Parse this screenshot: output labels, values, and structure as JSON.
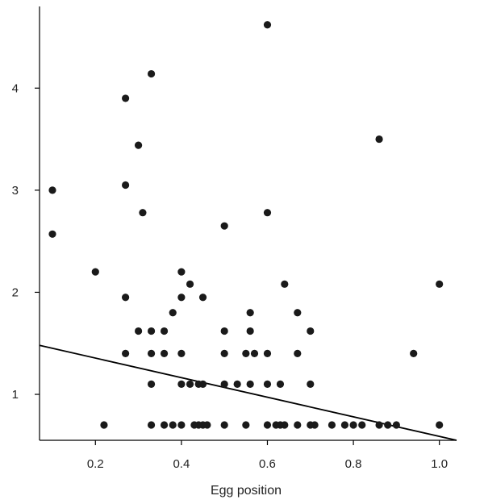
{
  "chart_data": {
    "type": "scatter",
    "title": "",
    "xlabel": "Egg position",
    "ylabel": "",
    "xlim": [
      0.07,
      1.04
    ],
    "ylim": [
      0.55,
      4.8
    ],
    "x_ticks": [
      0.2,
      0.4,
      0.6,
      0.8,
      1.0
    ],
    "x_tick_labels": [
      "0.2",
      "0.4",
      "0.6",
      "0.8",
      "1.0"
    ],
    "y_ticks": [
      1,
      2,
      3,
      4
    ],
    "y_tick_labels": [
      "1",
      "2",
      "3",
      "4"
    ],
    "grid": false,
    "legend": "none",
    "point_color": "#1a1a1a",
    "points": [
      {
        "x": 0.1,
        "y": 3.0
      },
      {
        "x": 0.1,
        "y": 2.57
      },
      {
        "x": 0.2,
        "y": 2.2
      },
      {
        "x": 0.22,
        "y": 0.7
      },
      {
        "x": 0.27,
        "y": 3.9
      },
      {
        "x": 0.27,
        "y": 3.05
      },
      {
        "x": 0.27,
        "y": 1.95
      },
      {
        "x": 0.27,
        "y": 1.4
      },
      {
        "x": 0.3,
        "y": 3.44
      },
      {
        "x": 0.3,
        "y": 1.62
      },
      {
        "x": 0.31,
        "y": 2.78
      },
      {
        "x": 0.33,
        "y": 4.14
      },
      {
        "x": 0.33,
        "y": 1.62
      },
      {
        "x": 0.33,
        "y": 1.4
      },
      {
        "x": 0.33,
        "y": 1.1
      },
      {
        "x": 0.33,
        "y": 0.7
      },
      {
        "x": 0.36,
        "y": 1.62
      },
      {
        "x": 0.36,
        "y": 1.4
      },
      {
        "x": 0.36,
        "y": 0.7
      },
      {
        "x": 0.38,
        "y": 1.8
      },
      {
        "x": 0.38,
        "y": 0.7
      },
      {
        "x": 0.4,
        "y": 2.2
      },
      {
        "x": 0.4,
        "y": 1.95
      },
      {
        "x": 0.4,
        "y": 1.4
      },
      {
        "x": 0.4,
        "y": 1.1
      },
      {
        "x": 0.4,
        "y": 0.7
      },
      {
        "x": 0.42,
        "y": 2.08
      },
      {
        "x": 0.42,
        "y": 1.1
      },
      {
        "x": 0.43,
        "y": 0.7
      },
      {
        "x": 0.44,
        "y": 1.1
      },
      {
        "x": 0.44,
        "y": 0.7
      },
      {
        "x": 0.45,
        "y": 1.95
      },
      {
        "x": 0.45,
        "y": 1.1
      },
      {
        "x": 0.45,
        "y": 0.7
      },
      {
        "x": 0.46,
        "y": 0.7
      },
      {
        "x": 0.5,
        "y": 2.65
      },
      {
        "x": 0.5,
        "y": 1.62
      },
      {
        "x": 0.5,
        "y": 1.4
      },
      {
        "x": 0.5,
        "y": 1.1
      },
      {
        "x": 0.5,
        "y": 0.7
      },
      {
        "x": 0.53,
        "y": 1.1
      },
      {
        "x": 0.55,
        "y": 1.4
      },
      {
        "x": 0.55,
        "y": 0.7
      },
      {
        "x": 0.56,
        "y": 1.8
      },
      {
        "x": 0.56,
        "y": 1.62
      },
      {
        "x": 0.56,
        "y": 1.1
      },
      {
        "x": 0.57,
        "y": 1.4
      },
      {
        "x": 0.6,
        "y": 4.62
      },
      {
        "x": 0.6,
        "y": 2.78
      },
      {
        "x": 0.6,
        "y": 1.4
      },
      {
        "x": 0.6,
        "y": 1.1
      },
      {
        "x": 0.6,
        "y": 0.7
      },
      {
        "x": 0.62,
        "y": 0.7
      },
      {
        "x": 0.63,
        "y": 1.1
      },
      {
        "x": 0.63,
        "y": 0.7
      },
      {
        "x": 0.64,
        "y": 2.08
      },
      {
        "x": 0.64,
        "y": 0.7
      },
      {
        "x": 0.67,
        "y": 1.8
      },
      {
        "x": 0.67,
        "y": 1.4
      },
      {
        "x": 0.67,
        "y": 0.7
      },
      {
        "x": 0.7,
        "y": 1.62
      },
      {
        "x": 0.7,
        "y": 1.1
      },
      {
        "x": 0.7,
        "y": 0.7
      },
      {
        "x": 0.71,
        "y": 0.7
      },
      {
        "x": 0.75,
        "y": 0.7
      },
      {
        "x": 0.78,
        "y": 0.7
      },
      {
        "x": 0.8,
        "y": 0.7
      },
      {
        "x": 0.82,
        "y": 0.7
      },
      {
        "x": 0.86,
        "y": 3.5
      },
      {
        "x": 0.86,
        "y": 0.7
      },
      {
        "x": 0.88,
        "y": 0.7
      },
      {
        "x": 0.9,
        "y": 0.7
      },
      {
        "x": 0.94,
        "y": 1.4
      },
      {
        "x": 1.0,
        "y": 2.08
      },
      {
        "x": 1.0,
        "y": 0.7
      }
    ],
    "trend_line": {
      "x": [
        0.07,
        1.04
      ],
      "y": [
        1.48,
        0.55
      ],
      "color": "#000000"
    }
  }
}
